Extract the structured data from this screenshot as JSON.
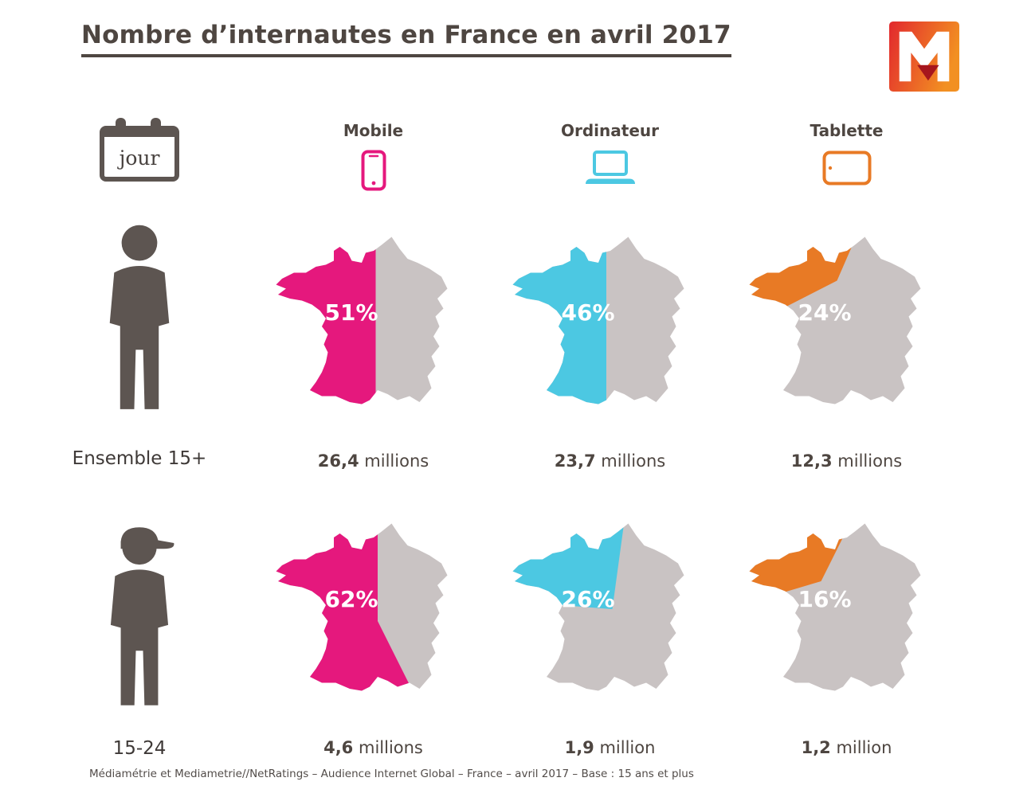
{
  "title": "Nombre d’internautes en France en avril 2017",
  "calendar_badge": "jour",
  "footer": "Médiamétrie et Mediametrie//NetRatings – Audience Internet Global – France – avril 2017 – Base : 15 ans et plus",
  "logo": {
    "brand": "Médiamétrie"
  },
  "colors": {
    "map_gray": "#c9c3c3",
    "text_dark": "#4e4641",
    "icon_gray": "#5d5551",
    "logo_red": "#e2282d",
    "logo_orange": "#f29022",
    "logo_dark_red": "#a6161d"
  },
  "chart_data": {
    "type": "pictorial",
    "title": "Nombre d’internautes en France en avril 2017",
    "period": "jour",
    "columns": [
      {
        "key": "mobile",
        "label": "Mobile",
        "color": "#e5187d",
        "icon": "smartphone-icon"
      },
      {
        "key": "ordinateur",
        "label": "Ordinateur",
        "color": "#4cc8e2",
        "icon": "laptop-icon"
      },
      {
        "key": "tablette",
        "label": "Tablette",
        "color": "#e87a25",
        "icon": "tablet-icon"
      }
    ],
    "rows": [
      {
        "key": "ensemble-15plus",
        "label": "Ensemble 15+",
        "icon": "person-icon",
        "cells": [
          {
            "pct": 51,
            "pct_label": "51%",
            "value": "26,4",
            "value_millions": 26.4,
            "unit": "millions",
            "clip": "0,0 51,0 51,104 0,104"
          },
          {
            "pct": 46,
            "pct_label": "46%",
            "value": "23,7",
            "value_millions": 23.7,
            "unit": "millions",
            "clip": "0,0 48,0 48,104 0,104"
          },
          {
            "pct": 24,
            "pct_label": "24%",
            "value": "12,3",
            "value_millions": 12.3,
            "unit": "millions",
            "clip": "0,0 55,0 45,23 0,46"
          }
        ]
      },
      {
        "key": "15-24",
        "label": "15-24",
        "icon": "person-cap-icon",
        "cells": [
          {
            "pct": 62,
            "pct_label": "62%",
            "value": "4,6",
            "value_millions": 4.6,
            "unit": "millions",
            "clip": "0,0 52,0 52,50 79,104 0,104"
          },
          {
            "pct": 26,
            "pct_label": "26%",
            "value": "1,9",
            "value_millions": 1.9,
            "unit": "million",
            "clip": "0,0 57,0 51,44 0,40"
          },
          {
            "pct": 16,
            "pct_label": "16%",
            "value": "1,2",
            "value_millions": 1.2,
            "unit": "million",
            "clip": "0,0 52,0 37,30 0,41"
          }
        ]
      }
    ]
  }
}
